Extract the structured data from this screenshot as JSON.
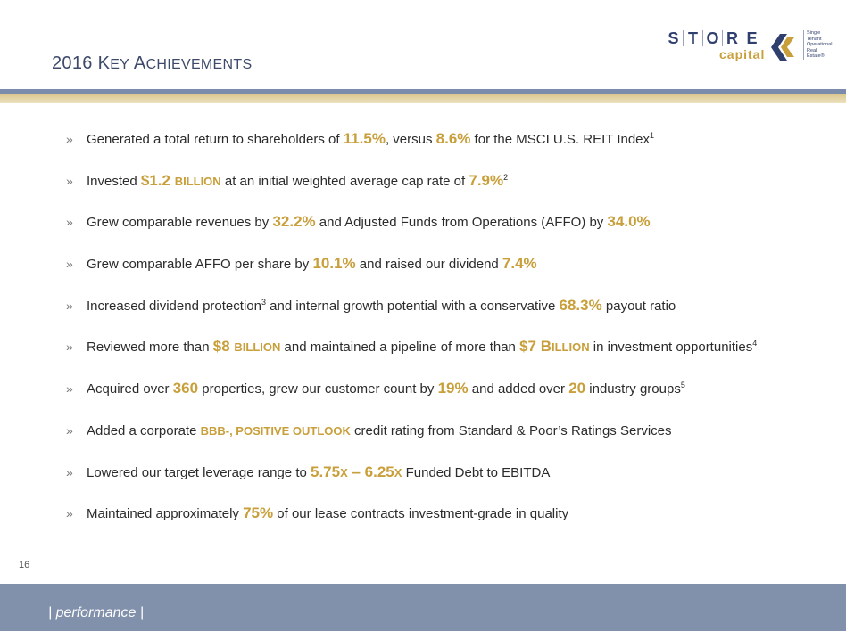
{
  "header": {
    "title_year": "2016",
    "title_k": "K",
    "title_ey": "ey",
    "title_a": "A",
    "title_chievements": "chievements"
  },
  "logo": {
    "letters": [
      "S",
      "T",
      "O",
      "R",
      "E"
    ],
    "capital": "capital",
    "tagline": [
      "Single",
      "Tenant",
      "Operational",
      "Real",
      "Estate®"
    ]
  },
  "bullets": [
    {
      "parts": [
        {
          "t": "Generated a total return to shareholders of "
        },
        {
          "h": "11.5%"
        },
        {
          "t": ", versus "
        },
        {
          "h": "8.6%"
        },
        {
          "t": " for the MSCI U.S. REIT Index"
        },
        {
          "sup": "1"
        }
      ]
    },
    {
      "parts": [
        {
          "t": "Invested "
        },
        {
          "h": "$1.2 "
        },
        {
          "sc": "billion"
        },
        {
          "t": " at an initial weighted average cap rate of "
        },
        {
          "h": "7.9%"
        },
        {
          "sup": "2"
        }
      ]
    },
    {
      "parts": [
        {
          "t": "Grew comparable revenues by "
        },
        {
          "h": "32.2%"
        },
        {
          "t": " and Adjusted Funds from Operations (AFFO) by "
        },
        {
          "h": "34.0%"
        }
      ]
    },
    {
      "parts": [
        {
          "t": "Grew comparable AFFO per share by "
        },
        {
          "h": "10.1%"
        },
        {
          "t": " and raised our dividend "
        },
        {
          "h": "7.4%"
        }
      ]
    },
    {
      "parts": [
        {
          "t": "Increased dividend protection"
        },
        {
          "sup": "3"
        },
        {
          "t": " and internal growth potential with a conservative "
        },
        {
          "h": "68.3%"
        },
        {
          "t": " payout ratio"
        }
      ]
    },
    {
      "parts": [
        {
          "t": "Reviewed more than "
        },
        {
          "h": "$8 "
        },
        {
          "sc": "billion"
        },
        {
          "t": " and maintained a pipeline of more than "
        },
        {
          "h": "$7 B"
        },
        {
          "sc": "illion"
        },
        {
          "t": " in investment opportunities"
        },
        {
          "sup": "4"
        }
      ]
    },
    {
      "parts": [
        {
          "t": "Acquired over "
        },
        {
          "h": "360"
        },
        {
          "t": " properties, grew our customer count by "
        },
        {
          "h": "19%"
        },
        {
          "t": " and added over "
        },
        {
          "h": "20"
        },
        {
          "t": " industry groups"
        },
        {
          "sup": "5"
        }
      ]
    },
    {
      "parts": [
        {
          "t": "Added a corporate "
        },
        {
          "sc": "BBB-, positive outlook"
        },
        {
          "t": " credit rating from Standard & Poor’s Ratings Services"
        }
      ]
    },
    {
      "parts": [
        {
          "t": "Lowered our target leverage range to "
        },
        {
          "h": "5.75"
        },
        {
          "sc": "x"
        },
        {
          "h": " – 6.25"
        },
        {
          "sc": "x"
        },
        {
          "t": " Funded Debt to EBITDA"
        }
      ]
    },
    {
      "parts": [
        {
          "t": "Maintained approximately "
        },
        {
          "h": "75%"
        },
        {
          "t": " of our lease contracts investment-grade in quality"
        }
      ]
    }
  ],
  "bullet_marker": "»",
  "page_number": "16",
  "footer": {
    "section": "| performance |"
  },
  "colors": {
    "accent_gold": "#c89f3a",
    "navy": "#2f3f6e",
    "footer_bg": "#8190ab"
  }
}
